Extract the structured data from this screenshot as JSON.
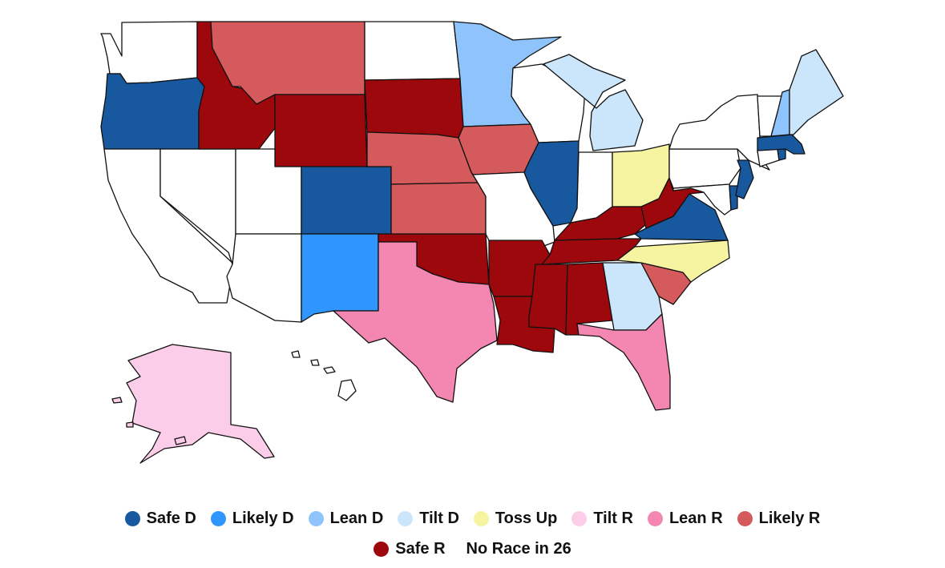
{
  "legend": [
    {
      "label": "Safe D",
      "color": "#17589e"
    },
    {
      "label": "Likely D",
      "color": "#2f95ff"
    },
    {
      "label": "Lean D",
      "color": "#8ec3fb"
    },
    {
      "label": "Tilt D",
      "color": "#cbe6fb"
    },
    {
      "label": "Toss Up",
      "color": "#f6f4a1"
    },
    {
      "label": "Tilt R",
      "color": "#fbcde9"
    },
    {
      "label": "Lean R",
      "color": "#f487b2"
    },
    {
      "label": "Likely R",
      "color": "#d45a5b"
    },
    {
      "label": "Safe R",
      "color": "#9d080c"
    },
    {
      "label": "No Race in 26",
      "color": "#ffffff"
    }
  ],
  "states": {
    "WA": "No Race in 26",
    "OR": "Safe D",
    "CA": "No Race in 26",
    "NV": "No Race in 26",
    "ID": "Safe R",
    "MT": "Likely R",
    "WY": "Safe R",
    "UT": "No Race in 26",
    "AZ": "No Race in 26",
    "CO": "Safe D",
    "NM": "Likely D",
    "ND": "No Race in 26",
    "SD": "Safe R",
    "NE": "Likely R",
    "KS": "Likely R",
    "OK": "Safe R",
    "TX": "Lean R",
    "MN": "Lean D",
    "IA": "Likely R",
    "MO": "No Race in 26",
    "AR": "Safe R",
    "LA": "Safe R",
    "WI": "No Race in 26",
    "IL": "Safe D",
    "MI": "Tilt D",
    "IN": "No Race in 26",
    "OH": "Toss Up",
    "KY": "Safe R",
    "TN": "Safe R",
    "MS": "Safe R",
    "AL": "Safe R",
    "GA": "Tilt D",
    "FL": "Lean R",
    "SC": "Likely R",
    "NC": "Toss Up",
    "VA": "Safe D",
    "WV": "Safe R",
    "MD": "No Race in 26",
    "DE": "Safe D",
    "PA": "No Race in 26",
    "NJ": "Safe D",
    "NY": "No Race in 26",
    "CT": "No Race in 26",
    "RI": "Safe D",
    "MA": "Safe D",
    "VT": "No Race in 26",
    "NH": "Lean D",
    "ME": "Tilt D",
    "AK": "Tilt R",
    "HI": "No Race in 26"
  }
}
